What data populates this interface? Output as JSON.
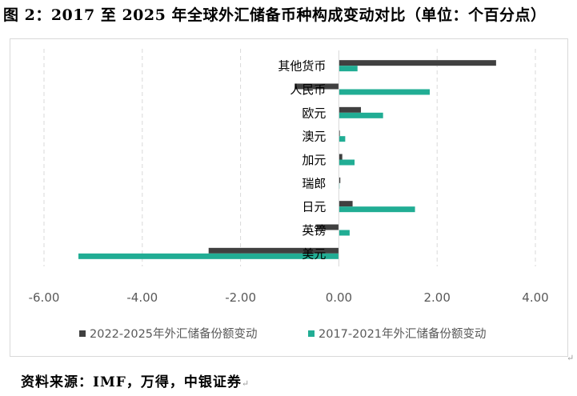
{
  "title": "图 2：2017 至 2025 年全球外汇储备币种构成变动对比（单位：个百分点）",
  "source": "资料来源：IMF，万得，中银证券",
  "para_mark": "↵",
  "colors": {
    "series_dark": "#404040",
    "series_teal": "#21ad94",
    "grid": "#d9d9d9",
    "axis_text": "#595959"
  },
  "chart_data": {
    "type": "bar",
    "orientation": "horizontal",
    "categories": [
      "其他货币",
      "人民币",
      "欧元",
      "澳元",
      "加元",
      "瑞郎",
      "日元",
      "英镑",
      "美元"
    ],
    "series": [
      {
        "name": "2022-2025年外汇储备份额变动",
        "color": "#404040",
        "values": [
          3.2,
          -0.9,
          0.45,
          0.02,
          0.07,
          0.03,
          0.28,
          -0.45,
          -2.65
        ]
      },
      {
        "name": "2017-2021年外汇储备份额变动",
        "color": "#21ad94",
        "values": [
          0.38,
          1.85,
          0.9,
          0.13,
          0.32,
          0.01,
          1.55,
          0.22,
          -5.3
        ]
      }
    ],
    "xlim": [
      -6,
      4
    ],
    "xticks": [
      "-6.00",
      "-4.00",
      "-2.00",
      "0.00",
      "2.00",
      "4.00"
    ],
    "xtick_values": [
      -6,
      -4,
      -2,
      0,
      2,
      4
    ],
    "grid": "vertical dashed",
    "legend": "bottom"
  }
}
